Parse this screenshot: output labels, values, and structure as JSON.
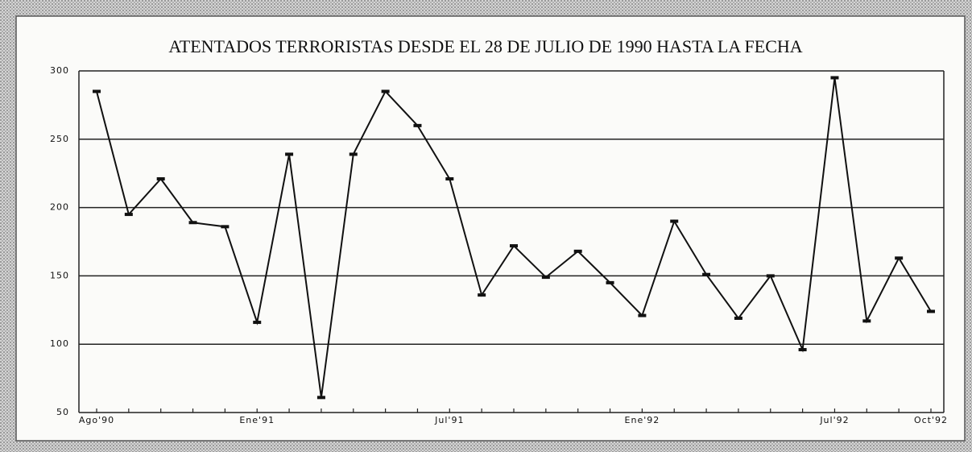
{
  "chart_data": {
    "type": "line",
    "title": "ATENTADOS TERRORISTAS DESDE EL 28 DE JULIO DE 1990 HASTA LA FECHA",
    "categories": [
      "Ago'90",
      null,
      null,
      null,
      null,
      "Ene'91",
      null,
      null,
      null,
      null,
      null,
      "Jul'91",
      null,
      null,
      null,
      null,
      null,
      "Ene'92",
      null,
      null,
      null,
      null,
      null,
      "Jul'92",
      null,
      null,
      "Oct'92"
    ],
    "values": [
      285,
      195,
      221,
      189,
      186,
      116,
      239,
      61,
      239,
      285,
      260,
      221,
      136,
      172,
      149,
      168,
      145,
      121,
      190,
      151,
      119,
      150,
      96,
      295,
      117,
      163,
      124
    ],
    "color": "#111111",
    "ylim": [
      50,
      300
    ],
    "yticks": [
      50,
      100,
      150,
      200,
      250,
      300
    ],
    "grid": true
  }
}
